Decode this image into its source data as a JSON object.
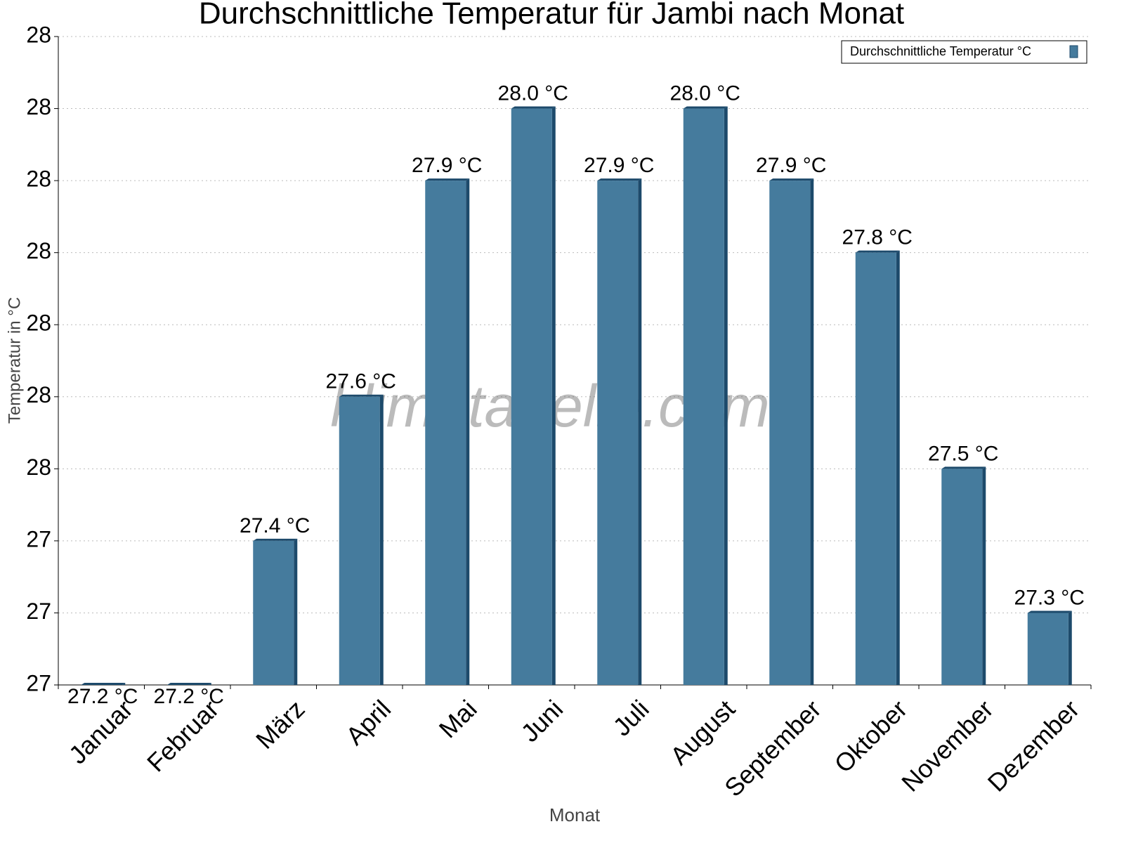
{
  "chart_data": {
    "type": "bar",
    "title": "Durchschnittliche Temperatur für Jambi nach Monat",
    "x_label": "Monat",
    "y_label": "Temperatur in °C",
    "watermark": "klimatabelle.com",
    "categories": [
      "Januar",
      "Februar",
      "März",
      "April",
      "Mai",
      "Juni",
      "Juli",
      "August",
      "September",
      "Oktober",
      "November",
      "Dezember"
    ],
    "series": [
      {
        "name": "Durchschnittliche Temperatur °C",
        "color": "#457b9d",
        "values": [
          27.2,
          27.2,
          27.4,
          27.6,
          27.9,
          28.0,
          27.9,
          28.0,
          27.9,
          27.8,
          27.5,
          27.3
        ],
        "value_labels": [
          "27.2 °C",
          "27.2 °C",
          "27.4 °C",
          "27.6 °C",
          "27.9 °C",
          "28.0 °C",
          "27.9 °C",
          "28.0 °C",
          "27.9 °C",
          "27.8 °C",
          "27.5 °C",
          "27.3 °C"
        ]
      }
    ],
    "ylim": [
      27.2,
      28.1
    ],
    "yticks": [
      {
        "value": 27.2,
        "label": "27"
      },
      {
        "value": 27.3,
        "label": "27"
      },
      {
        "value": 27.4,
        "label": "27"
      },
      {
        "value": 27.5,
        "label": "28"
      },
      {
        "value": 27.6,
        "label": "28"
      },
      {
        "value": 27.7,
        "label": "28"
      },
      {
        "value": 27.8,
        "label": "28"
      },
      {
        "value": 27.9,
        "label": "28"
      },
      {
        "value": 28.0,
        "label": "28"
      },
      {
        "value": 28.1,
        "label": "28"
      }
    ],
    "grid": true,
    "legend": "upper right"
  }
}
